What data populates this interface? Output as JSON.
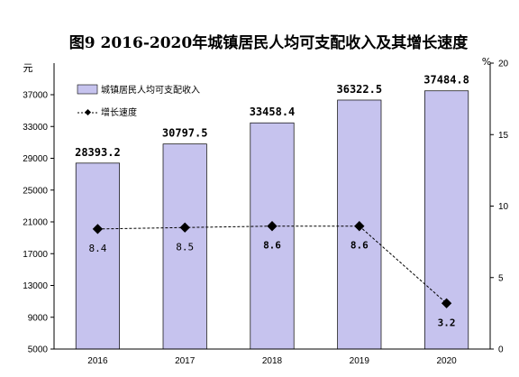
{
  "chart_data": {
    "type": "bar",
    "title": "图9  2016-2020年城镇居民人均可支配收入及其增长速度",
    "categories": [
      "2016",
      "2017",
      "2018",
      "2019",
      "2020"
    ],
    "series": [
      {
        "name": "城镇居民人均可支配收入",
        "type": "bar",
        "axis": "left",
        "values": [
          28393.2,
          30797.5,
          33458.4,
          36322.5,
          37484.8
        ],
        "labels": [
          "28393.2",
          "30797.5",
          "33458.4",
          "36322.5",
          "37484.8"
        ],
        "color": "#c6c3ee"
      },
      {
        "name": "增长速度",
        "type": "line",
        "axis": "right",
        "values": [
          8.4,
          8.5,
          8.6,
          8.6,
          3.2
        ],
        "labels": [
          "8.4",
          "8.5",
          "8.6",
          "8.6",
          "3.2"
        ],
        "color": "#000000"
      }
    ],
    "y_left": {
      "unit": "元",
      "range": [
        5000,
        37000
      ],
      "ticks": [
        "5000",
        "9000",
        "13000",
        "17000",
        "21000",
        "25000",
        "29000",
        "33000",
        "37000"
      ]
    },
    "y_right": {
      "unit": "%",
      "range": [
        0,
        20
      ],
      "ticks": [
        "0",
        "5",
        "10",
        "15",
        "20"
      ]
    },
    "grid": false,
    "legend_position": "top-left"
  }
}
